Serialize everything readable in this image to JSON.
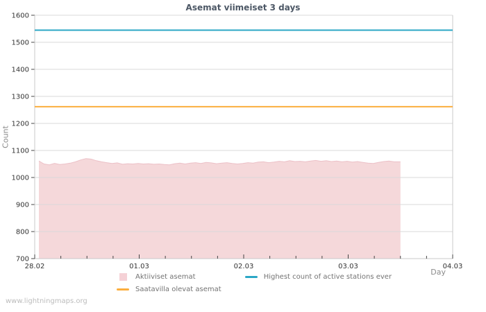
{
  "chart": {
    "title": "Asemat viimeiset 3 days",
    "ylabel": "Count",
    "xlabel": "Day"
  },
  "watermark": "www.lightningmaps.org",
  "legend": {
    "items": [
      {
        "label": "Aktiiviset asemat",
        "type": "area",
        "color": "#f5d1d6"
      },
      {
        "label": "Saatavilla olevat asemat",
        "type": "line",
        "color": "#fbae3d"
      },
      {
        "label": "Highest count of active stations ever",
        "type": "line",
        "color": "#2ba7c6"
      }
    ]
  },
  "chart_data": {
    "type": "area",
    "title": "Asemat viimeiset 3 days",
    "xlabel": "Day",
    "ylabel": "Count",
    "xlim": [
      0,
      4
    ],
    "ylim": [
      700,
      1600
    ],
    "grid": "horizontal",
    "legend_position": "bottom",
    "x_unit": "days since 28.02 00:00",
    "yticks": [
      700,
      800,
      900,
      1000,
      1100,
      1200,
      1300,
      1400,
      1500,
      1600
    ],
    "xticks": [
      {
        "pos": 0,
        "label": "28.02"
      },
      {
        "pos": 1,
        "label": "01.03"
      },
      {
        "pos": 2,
        "label": "02.03"
      },
      {
        "pos": 3,
        "label": "03.03"
      },
      {
        "pos": 4,
        "label": "04.03"
      }
    ],
    "xtick_minor_step": 0.25,
    "style": {
      "grid_color": "#d9d9d9",
      "border_color": "#c9c9c9",
      "tick_color": "#444444",
      "tick_label_color": "#333333"
    },
    "series": [
      {
        "name": "Aktiiviset asemat",
        "type": "area",
        "color": "#f5d8da",
        "edge_color": "#ecc0c7",
        "x": [
          0.04,
          0.09,
          0.14,
          0.19,
          0.24,
          0.29,
          0.34,
          0.39,
          0.44,
          0.49,
          0.54,
          0.59,
          0.64,
          0.69,
          0.74,
          0.79,
          0.84,
          0.89,
          0.94,
          0.99,
          1.04,
          1.09,
          1.14,
          1.19,
          1.24,
          1.29,
          1.34,
          1.39,
          1.44,
          1.49,
          1.54,
          1.59,
          1.64,
          1.69,
          1.74,
          1.79,
          1.84,
          1.89,
          1.94,
          1.99,
          2.04,
          2.09,
          2.14,
          2.19,
          2.24,
          2.29,
          2.34,
          2.39,
          2.44,
          2.49,
          2.54,
          2.59,
          2.64,
          2.69,
          2.74,
          2.79,
          2.84,
          2.89,
          2.94,
          2.99,
          3.04,
          3.09,
          3.14,
          3.19,
          3.24,
          3.29,
          3.34,
          3.39,
          3.44,
          3.5
        ],
        "values": [
          1061,
          1050,
          1047,
          1052,
          1048,
          1050,
          1053,
          1058,
          1065,
          1070,
          1068,
          1062,
          1058,
          1055,
          1052,
          1054,
          1049,
          1051,
          1050,
          1052,
          1050,
          1051,
          1049,
          1050,
          1048,
          1047,
          1051,
          1053,
          1050,
          1053,
          1055,
          1052,
          1056,
          1054,
          1051,
          1053,
          1055,
          1052,
          1050,
          1052,
          1055,
          1053,
          1057,
          1058,
          1055,
          1057,
          1060,
          1058,
          1062,
          1059,
          1060,
          1058,
          1061,
          1063,
          1060,
          1062,
          1059,
          1061,
          1058,
          1060,
          1057,
          1059,
          1056,
          1053,
          1052,
          1056,
          1059,
          1061,
          1058,
          1058
        ]
      },
      {
        "name": "Saatavilla olevat asemat",
        "type": "line",
        "color": "#fbae3d",
        "constant": 1262
      },
      {
        "name": "Highest count of active stations ever",
        "type": "line",
        "color": "#2ba7c6",
        "constant": 1545
      }
    ]
  }
}
